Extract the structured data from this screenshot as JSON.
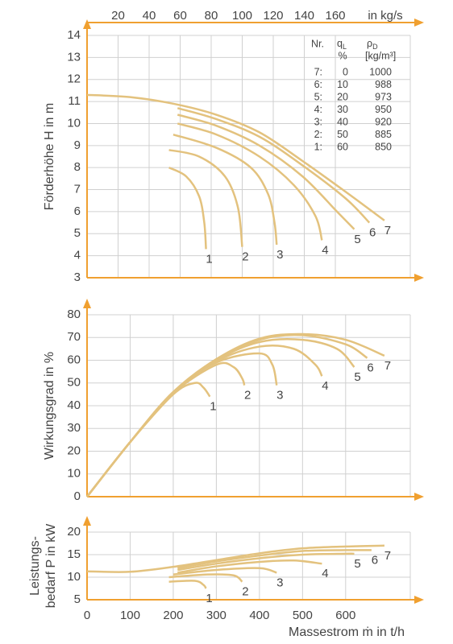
{
  "chart_data": [
    {
      "type": "line",
      "ylabel": "Förderhöhe H  in m",
      "xlim": [
        0,
        750
      ],
      "ylim": [
        3,
        14
      ],
      "yticks": [
        3,
        4,
        5,
        6,
        7,
        8,
        9,
        10,
        11,
        12,
        13,
        14
      ],
      "x2lim": [
        0,
        208.3
      ],
      "x2ticks": [
        20,
        40,
        60,
        80,
        100,
        120,
        140,
        160
      ],
      "x2label": "in kg/s",
      "grid": true,
      "color": "#e3c27e",
      "table": {
        "nr": "Nr.",
        "q": "q",
        "q_sub": "L",
        "q_unit": "%",
        "rho": "ρ",
        "rho_sub": "D",
        "rho_unit": "[kg/m³]",
        "rows": [
          [
            "7:",
            "0",
            "1000"
          ],
          [
            "6:",
            "10",
            "988"
          ],
          [
            "5:",
            "20",
            "973"
          ],
          [
            "4:",
            "30",
            "950"
          ],
          [
            "3:",
            "40",
            "920"
          ],
          [
            "2:",
            "50",
            "885"
          ],
          [
            "1:",
            "60",
            "850"
          ]
        ]
      },
      "series": [
        {
          "name": "1",
          "x": [
            190,
            230,
            260,
            272,
            276
          ],
          "values": [
            8.0,
            7.6,
            6.7,
            5.5,
            4.3
          ]
        },
        {
          "name": "2",
          "x": [
            190,
            260,
            320,
            350,
            360
          ],
          "values": [
            8.8,
            8.5,
            7.6,
            6.2,
            4.4
          ]
        },
        {
          "name": "3",
          "x": [
            200,
            300,
            380,
            420,
            435,
            440
          ],
          "values": [
            9.5,
            8.9,
            8.0,
            6.8,
            5.5,
            4.5
          ]
        },
        {
          "name": "4",
          "x": [
            210,
            300,
            400,
            480,
            530,
            545
          ],
          "values": [
            10.0,
            9.5,
            8.5,
            7.2,
            5.8,
            4.7
          ]
        },
        {
          "name": "5",
          "x": [
            210,
            300,
            400,
            500,
            580,
            620
          ],
          "values": [
            10.4,
            9.9,
            9.0,
            7.6,
            6.0,
            5.2
          ]
        },
        {
          "name": "6",
          "x": [
            210,
            300,
            400,
            500,
            600,
            655
          ],
          "values": [
            10.7,
            10.2,
            9.4,
            8.1,
            6.6,
            5.5
          ]
        },
        {
          "name": "7",
          "x": [
            0,
            100,
            200,
            300,
            400,
            500,
            600,
            690
          ],
          "values": [
            11.3,
            11.2,
            10.9,
            10.4,
            9.6,
            8.3,
            6.9,
            5.6
          ]
        }
      ]
    },
    {
      "type": "line",
      "ylabel": "Wirkungsgrad  in %",
      "xlim": [
        0,
        750
      ],
      "ylim": [
        0,
        80
      ],
      "yticks": [
        0,
        10,
        20,
        30,
        40,
        50,
        60,
        70,
        80
      ],
      "grid": true,
      "color": "#e3c27e",
      "series": [
        {
          "name": "1",
          "x": [
            0,
            100,
            200,
            250,
            270,
            285
          ],
          "values": [
            0,
            24,
            45,
            50,
            48,
            44
          ]
        },
        {
          "name": "2",
          "x": [
            0,
            100,
            200,
            300,
            340,
            360,
            365
          ],
          "values": [
            0,
            24,
            45.5,
            58,
            57,
            52,
            49
          ]
        },
        {
          "name": "3",
          "x": [
            0,
            100,
            200,
            300,
            400,
            430,
            440
          ],
          "values": [
            0,
            24,
            46,
            59,
            63,
            58,
            49
          ]
        },
        {
          "name": "4",
          "x": [
            0,
            100,
            200,
            300,
            400,
            480,
            530,
            545
          ],
          "values": [
            0,
            24,
            46,
            59.5,
            66,
            65,
            58,
            53
          ]
        },
        {
          "name": "5",
          "x": [
            0,
            100,
            200,
            300,
            400,
            500,
            580,
            620
          ],
          "values": [
            0,
            24,
            46,
            60,
            68,
            69,
            65,
            57
          ]
        },
        {
          "name": "6",
          "x": [
            0,
            100,
            200,
            300,
            400,
            500,
            600,
            650
          ],
          "values": [
            0,
            24,
            46,
            60,
            69,
            71,
            67,
            61
          ]
        },
        {
          "name": "7",
          "x": [
            0,
            100,
            200,
            300,
            400,
            500,
            600,
            690
          ],
          "values": [
            0,
            24,
            46,
            60.5,
            69.5,
            71.5,
            69,
            62
          ]
        }
      ]
    },
    {
      "type": "line",
      "ylabel": [
        "Leistungs-",
        "bedarf P in kW"
      ],
      "xlim": [
        0,
        750
      ],
      "ylim": [
        5,
        20
      ],
      "yticks": [
        5,
        10,
        15,
        20
      ],
      "xticks": [
        0,
        100,
        200,
        300,
        400,
        500,
        600
      ],
      "xlabel": "Massestrom ṁ in t/h",
      "grid": true,
      "color": "#e3c27e",
      "series": [
        {
          "name": "1",
          "x": [
            190,
            250,
            270,
            276
          ],
          "values": [
            9.0,
            9.2,
            8.3,
            7.5
          ]
        },
        {
          "name": "2",
          "x": [
            190,
            280,
            340,
            360
          ],
          "values": [
            10.0,
            10.6,
            10.4,
            9.0
          ]
        },
        {
          "name": "3",
          "x": [
            200,
            300,
            400,
            440
          ],
          "values": [
            10.6,
            11.6,
            12.0,
            11.0
          ]
        },
        {
          "name": "4",
          "x": [
            210,
            300,
            400,
            480,
            545
          ],
          "values": [
            11.0,
            12.4,
            13.4,
            13.7,
            13.0
          ]
        },
        {
          "name": "5",
          "x": [
            210,
            300,
            400,
            500,
            600,
            620
          ],
          "values": [
            11.6,
            13.0,
            14.2,
            15.0,
            15.2,
            15.2
          ]
        },
        {
          "name": "6",
          "x": [
            210,
            300,
            400,
            500,
            600,
            660
          ],
          "values": [
            12.0,
            13.5,
            14.8,
            15.8,
            16.0,
            16.0
          ]
        },
        {
          "name": "7",
          "x": [
            0,
            100,
            200,
            300,
            400,
            500,
            600,
            690
          ],
          "values": [
            11.3,
            11.2,
            12.3,
            13.8,
            15.3,
            16.4,
            16.8,
            17.0
          ]
        }
      ]
    }
  ]
}
